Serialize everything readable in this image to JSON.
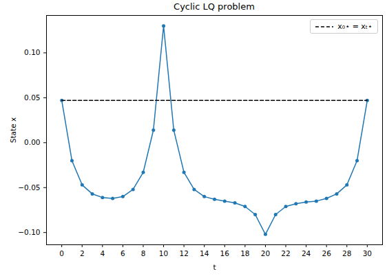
{
  "chart_data": {
    "type": "line",
    "title": "Cyclic LQ problem",
    "x_label": "t",
    "y_label": "State x",
    "x": [
      0,
      1,
      2,
      3,
      4,
      5,
      6,
      7,
      8,
      9,
      10,
      11,
      12,
      13,
      14,
      15,
      16,
      17,
      18,
      19,
      20,
      21,
      22,
      23,
      24,
      25,
      26,
      27,
      28,
      29,
      30
    ],
    "series": [
      {
        "name": "State x",
        "color": "#1f77b4",
        "marker": "circle",
        "line_style": "solid",
        "values": [
          0.047,
          -0.02,
          -0.047,
          -0.057,
          -0.061,
          -0.062,
          -0.06,
          -0.052,
          -0.033,
          0.014,
          0.13,
          0.014,
          -0.033,
          -0.052,
          -0.06,
          -0.063,
          -0.065,
          -0.067,
          -0.071,
          -0.08,
          -0.102,
          -0.08,
          -0.071,
          -0.068,
          -0.066,
          -0.065,
          -0.062,
          -0.057,
          -0.047,
          -0.02,
          0.047
        ]
      },
      {
        "name": "x₀⋆ = xₜ⋆",
        "color": "#000000",
        "line_style": "dashed",
        "values": [
          0.047,
          0.047,
          0.047,
          0.047,
          0.047,
          0.047,
          0.047,
          0.047,
          0.047,
          0.047,
          0.047,
          0.047,
          0.047,
          0.047,
          0.047,
          0.047,
          0.047,
          0.047,
          0.047,
          0.047,
          0.047,
          0.047,
          0.047,
          0.047,
          0.047,
          0.047,
          0.047,
          0.047,
          0.047,
          0.047,
          0.047
        ]
      }
    ],
    "legend": "upper right",
    "grid": false,
    "xlim": [
      -1.5,
      31.5
    ],
    "xticks": [
      0,
      2,
      4,
      6,
      8,
      10,
      12,
      14,
      16,
      18,
      20,
      22,
      24,
      26,
      28,
      30
    ],
    "ylim": [
      -0.1136,
      0.1416
    ],
    "yticks": [
      {
        "value": -0.1,
        "label": "−0.10"
      },
      {
        "value": -0.05,
        "label": "−0.05"
      },
      {
        "value": 0,
        "label": "0.00"
      },
      {
        "value": 0.05,
        "label": "0.05"
      },
      {
        "value": 0.1,
        "label": "0.10"
      }
    ]
  }
}
